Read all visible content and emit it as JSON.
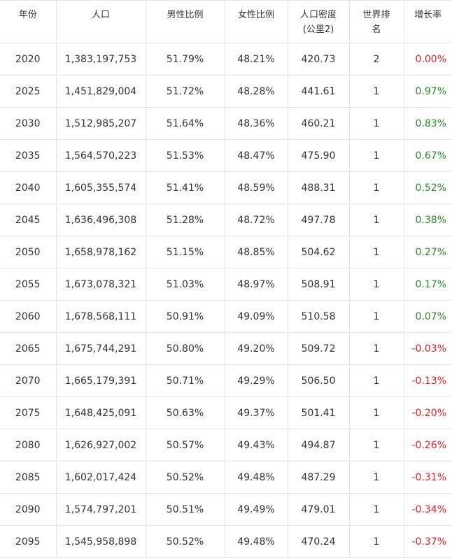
{
  "table": {
    "header": [
      "年份",
      "人口",
      "男性比例",
      "女性比例",
      "人口密度(公里2)",
      "世界排名",
      "增长率"
    ],
    "rows": [
      [
        "2020",
        "1,383,197,753",
        "51.79%",
        "48.21%",
        "420.73",
        "2",
        "0.00%"
      ],
      [
        "2025",
        "1,451,829,004",
        "51.72%",
        "48.28%",
        "441.61",
        "1",
        "0.97%"
      ],
      [
        "2030",
        "1,512,985,207",
        "51.64%",
        "48.36%",
        "460.21",
        "1",
        "0.83%"
      ],
      [
        "2035",
        "1,564,570,223",
        "51.53%",
        "48.47%",
        "475.90",
        "1",
        "0.67%"
      ],
      [
        "2040",
        "1,605,355,574",
        "51.41%",
        "48.59%",
        "488.31",
        "1",
        "0.52%"
      ],
      [
        "2045",
        "1,636,496,308",
        "51.28%",
        "48.72%",
        "497.78",
        "1",
        "0.38%"
      ],
      [
        "2050",
        "1,658,978,162",
        "51.15%",
        "48.85%",
        "504.62",
        "1",
        "0.27%"
      ],
      [
        "2055",
        "1,673,078,321",
        "51.03%",
        "48.97%",
        "508.91",
        "1",
        "0.17%"
      ],
      [
        "2060",
        "1,678,568,111",
        "50.91%",
        "49.09%",
        "510.58",
        "1",
        "0.07%"
      ],
      [
        "2065",
        "1,675,744,291",
        "50.80%",
        "49.20%",
        "509.72",
        "1",
        "-0.03%"
      ],
      [
        "2070",
        "1,665,179,391",
        "50.71%",
        "49.29%",
        "506.50",
        "1",
        "-0.13%"
      ],
      [
        "2075",
        "1,648,425,091",
        "50.63%",
        "49.37%",
        "501.41",
        "1",
        "-0.20%"
      ],
      [
        "2080",
        "1,626,927,002",
        "50.57%",
        "49.43%",
        "494.87",
        "1",
        "-0.26%"
      ],
      [
        "2085",
        "1,602,017,424",
        "50.52%",
        "49.48%",
        "487.29",
        "1",
        "-0.31%"
      ],
      [
        "2090",
        "1,574,797,201",
        "50.51%",
        "49.49%",
        "479.01",
        "1",
        "-0.34%"
      ],
      [
        "2095",
        "1,545,958,898",
        "50.52%",
        "49.48%",
        "470.24",
        "1",
        "-0.37%"
      ]
    ],
    "growth_colors": [
      "#e32020",
      "#2a8a2a",
      "#2a8a2a",
      "#2a8a2a",
      "#2a8a2a",
      "#2a8a2a",
      "#2a8a2a",
      "#2a8a2a",
      "#2a8a2a",
      "#e32020",
      "#e32020",
      "#e32020",
      "#e32020",
      "#e32020",
      "#e32020",
      "#e32020"
    ]
  }
}
